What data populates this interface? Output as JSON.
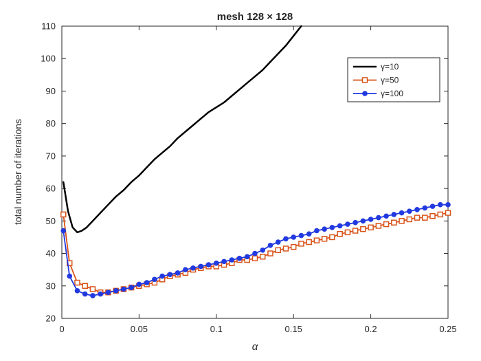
{
  "chart_data": {
    "type": "line",
    "title": "mesh 128 × 128",
    "xlabel": "α",
    "ylabel": "total number of iterations",
    "xlim": [
      0,
      0.25
    ],
    "ylim": [
      20,
      110
    ],
    "xticks": [
      0,
      0.05,
      0.1,
      0.15,
      0.2,
      0.25
    ],
    "xtick_labels": [
      "0",
      "0.05",
      "0.1",
      "0.15",
      "0.2",
      "0.25"
    ],
    "yticks": [
      20,
      30,
      40,
      50,
      60,
      70,
      80,
      90,
      100,
      110
    ],
    "grid": false,
    "legend_position": "northeast",
    "series": [
      {
        "name": "γ=10",
        "color": "#000000",
        "marker": "none",
        "line_width": 2.5,
        "x": [
          0.001,
          0.004,
          0.007,
          0.01,
          0.013,
          0.016,
          0.02,
          0.025,
          0.03,
          0.035,
          0.04,
          0.045,
          0.05,
          0.055,
          0.06,
          0.065,
          0.07,
          0.075,
          0.08,
          0.085,
          0.09,
          0.095,
          0.1,
          0.105,
          0.11,
          0.115,
          0.12,
          0.125,
          0.13,
          0.135,
          0.14,
          0.145,
          0.15,
          0.155
        ],
        "y": [
          62,
          53,
          48,
          46.5,
          47,
          48,
          50,
          52.5,
          55,
          57.5,
          59.5,
          62,
          64,
          66.5,
          69,
          71,
          73,
          75.5,
          77.5,
          79.5,
          81.5,
          83.5,
          85,
          86.5,
          88.5,
          90.5,
          92.5,
          94.5,
          96.5,
          99,
          101.5,
          104,
          107,
          110
        ]
      },
      {
        "name": "γ=50",
        "color": "#D95319",
        "marker": "square-open",
        "line_width": 1.8,
        "x": [
          0.001,
          0.005,
          0.01,
          0.015,
          0.02,
          0.025,
          0.03,
          0.035,
          0.04,
          0.045,
          0.05,
          0.055,
          0.06,
          0.065,
          0.07,
          0.075,
          0.08,
          0.085,
          0.09,
          0.095,
          0.1,
          0.105,
          0.11,
          0.115,
          0.12,
          0.125,
          0.13,
          0.135,
          0.14,
          0.145,
          0.15,
          0.155,
          0.16,
          0.165,
          0.17,
          0.175,
          0.18,
          0.185,
          0.19,
          0.195,
          0.2,
          0.205,
          0.21,
          0.215,
          0.22,
          0.225,
          0.23,
          0.235,
          0.24,
          0.245,
          0.25
        ],
        "y": [
          52,
          37,
          31,
          30,
          29,
          28,
          28,
          28.5,
          29,
          29.5,
          30,
          30.5,
          31,
          32,
          33,
          33.5,
          34,
          35,
          35.5,
          36,
          36,
          36.5,
          37,
          38,
          38,
          38.5,
          39,
          40,
          41,
          41.5,
          42,
          43,
          43.5,
          44,
          44.5,
          45,
          46,
          46.5,
          47,
          47.5,
          48,
          48.5,
          49,
          49.5,
          50,
          50.5,
          51,
          51,
          51.5,
          52,
          52.5
        ]
      },
      {
        "name": "γ=100",
        "color": "#2139E0",
        "marker": "circle-filled",
        "line_width": 1.8,
        "x": [
          0.001,
          0.005,
          0.01,
          0.015,
          0.02,
          0.025,
          0.03,
          0.035,
          0.04,
          0.045,
          0.05,
          0.055,
          0.06,
          0.065,
          0.07,
          0.075,
          0.08,
          0.085,
          0.09,
          0.095,
          0.1,
          0.105,
          0.11,
          0.115,
          0.12,
          0.125,
          0.13,
          0.135,
          0.14,
          0.145,
          0.15,
          0.155,
          0.16,
          0.165,
          0.17,
          0.175,
          0.18,
          0.185,
          0.19,
          0.195,
          0.2,
          0.205,
          0.21,
          0.215,
          0.22,
          0.225,
          0.23,
          0.235,
          0.24,
          0.245,
          0.25
        ],
        "y": [
          47,
          33,
          28.5,
          27.5,
          27,
          27.5,
          28,
          28.5,
          29,
          29.5,
          30.5,
          31,
          32,
          33,
          33.5,
          34,
          35,
          35.5,
          36,
          36.5,
          37,
          37.5,
          38,
          38.5,
          39,
          40,
          41,
          42.5,
          43.5,
          44.5,
          45,
          45.5,
          46,
          47,
          47.5,
          48,
          48.5,
          49,
          49.5,
          50,
          50.5,
          51,
          51.5,
          52,
          52.5,
          53,
          53.5,
          54,
          54.5,
          55,
          55
        ]
      }
    ]
  }
}
